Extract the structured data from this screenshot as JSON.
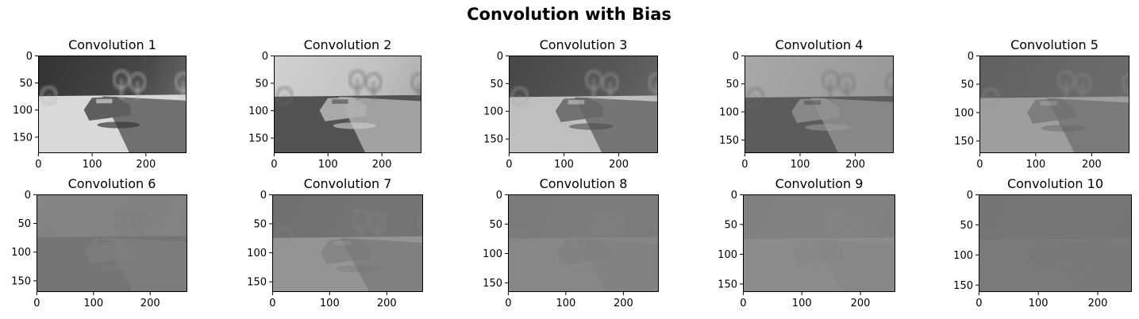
{
  "figure": {
    "title": "Convolution with Bias"
  },
  "colors": {
    "background": "#ffffff",
    "axis": "#000000"
  },
  "chart_data": [
    {
      "type": "image",
      "title": "Convolution 1",
      "image_size": [
        276,
        180
      ],
      "xticks": [
        0,
        100,
        200
      ],
      "yticks": [
        0,
        50,
        100,
        150
      ],
      "colormap": "gray",
      "background_level": 0.22,
      "ground_level": 0.85,
      "sky_level": 0.2,
      "contrast": 1.0
    },
    {
      "type": "image",
      "title": "Convolution 2",
      "image_size": [
        274,
        178
      ],
      "xticks": [
        0,
        100,
        200
      ],
      "yticks": [
        0,
        50,
        100,
        150
      ],
      "colormap": "gray",
      "background_level": 0.8,
      "ground_level": 0.32,
      "sky_level": 0.82,
      "contrast": 0.9
    },
    {
      "type": "image",
      "title": "Convolution 3",
      "image_size": [
        272,
        176
      ],
      "xticks": [
        0,
        100,
        200
      ],
      "yticks": [
        0,
        50,
        100,
        150
      ],
      "colormap": "gray",
      "background_level": 0.3,
      "ground_level": 0.75,
      "sky_level": 0.28,
      "contrast": 0.8
    },
    {
      "type": "image",
      "title": "Convolution 4",
      "image_size": [
        270,
        174
      ],
      "xticks": [
        0,
        100,
        200
      ],
      "yticks": [
        0,
        50,
        100,
        150
      ],
      "colormap": "gray",
      "background_level": 0.62,
      "ground_level": 0.36,
      "sky_level": 0.66,
      "contrast": 0.7
    },
    {
      "type": "image",
      "title": "Convolution 5",
      "image_size": [
        268,
        172
      ],
      "xticks": [
        0,
        100,
        200
      ],
      "yticks": [
        0,
        50,
        100,
        150
      ],
      "colormap": "gray",
      "background_level": 0.4,
      "ground_level": 0.62,
      "sky_level": 0.38,
      "contrast": 0.55
    },
    {
      "type": "image",
      "title": "Convolution 6",
      "image_size": [
        266,
        170
      ],
      "xticks": [
        0,
        100,
        200
      ],
      "yticks": [
        0,
        50,
        100,
        150
      ],
      "colormap": "gray",
      "background_level": 0.5,
      "ground_level": 0.46,
      "sky_level": 0.52,
      "contrast": 0.45
    },
    {
      "type": "image",
      "title": "Convolution 7",
      "image_size": [
        264,
        168
      ],
      "xticks": [
        0,
        100,
        200
      ],
      "yticks": [
        0,
        50,
        100,
        150
      ],
      "colormap": "gray",
      "background_level": 0.46,
      "ground_level": 0.58,
      "sky_level": 0.44,
      "contrast": 0.3
    },
    {
      "type": "image",
      "title": "Convolution 8",
      "image_size": [
        262,
        166
      ],
      "xticks": [
        0,
        100,
        200
      ],
      "yticks": [
        0,
        50,
        100,
        150
      ],
      "colormap": "gray",
      "background_level": 0.5,
      "ground_level": 0.53,
      "sky_level": 0.48,
      "contrast": 0.25
    },
    {
      "type": "image",
      "title": "Convolution 9",
      "image_size": [
        260,
        164
      ],
      "xticks": [
        0,
        100,
        200
      ],
      "yticks": [
        0,
        50,
        100,
        150
      ],
      "colormap": "gray",
      "background_level": 0.52,
      "ground_level": 0.55,
      "sky_level": 0.5,
      "contrast": 0.15
    },
    {
      "type": "image",
      "title": "Convolution 10",
      "image_size": [
        258,
        162
      ],
      "xticks": [
        0,
        100,
        200
      ],
      "yticks": [
        0,
        50,
        100,
        150
      ],
      "colormap": "gray",
      "background_level": 0.47,
      "ground_level": 0.48,
      "sky_level": 0.46,
      "contrast": 0.1
    }
  ]
}
